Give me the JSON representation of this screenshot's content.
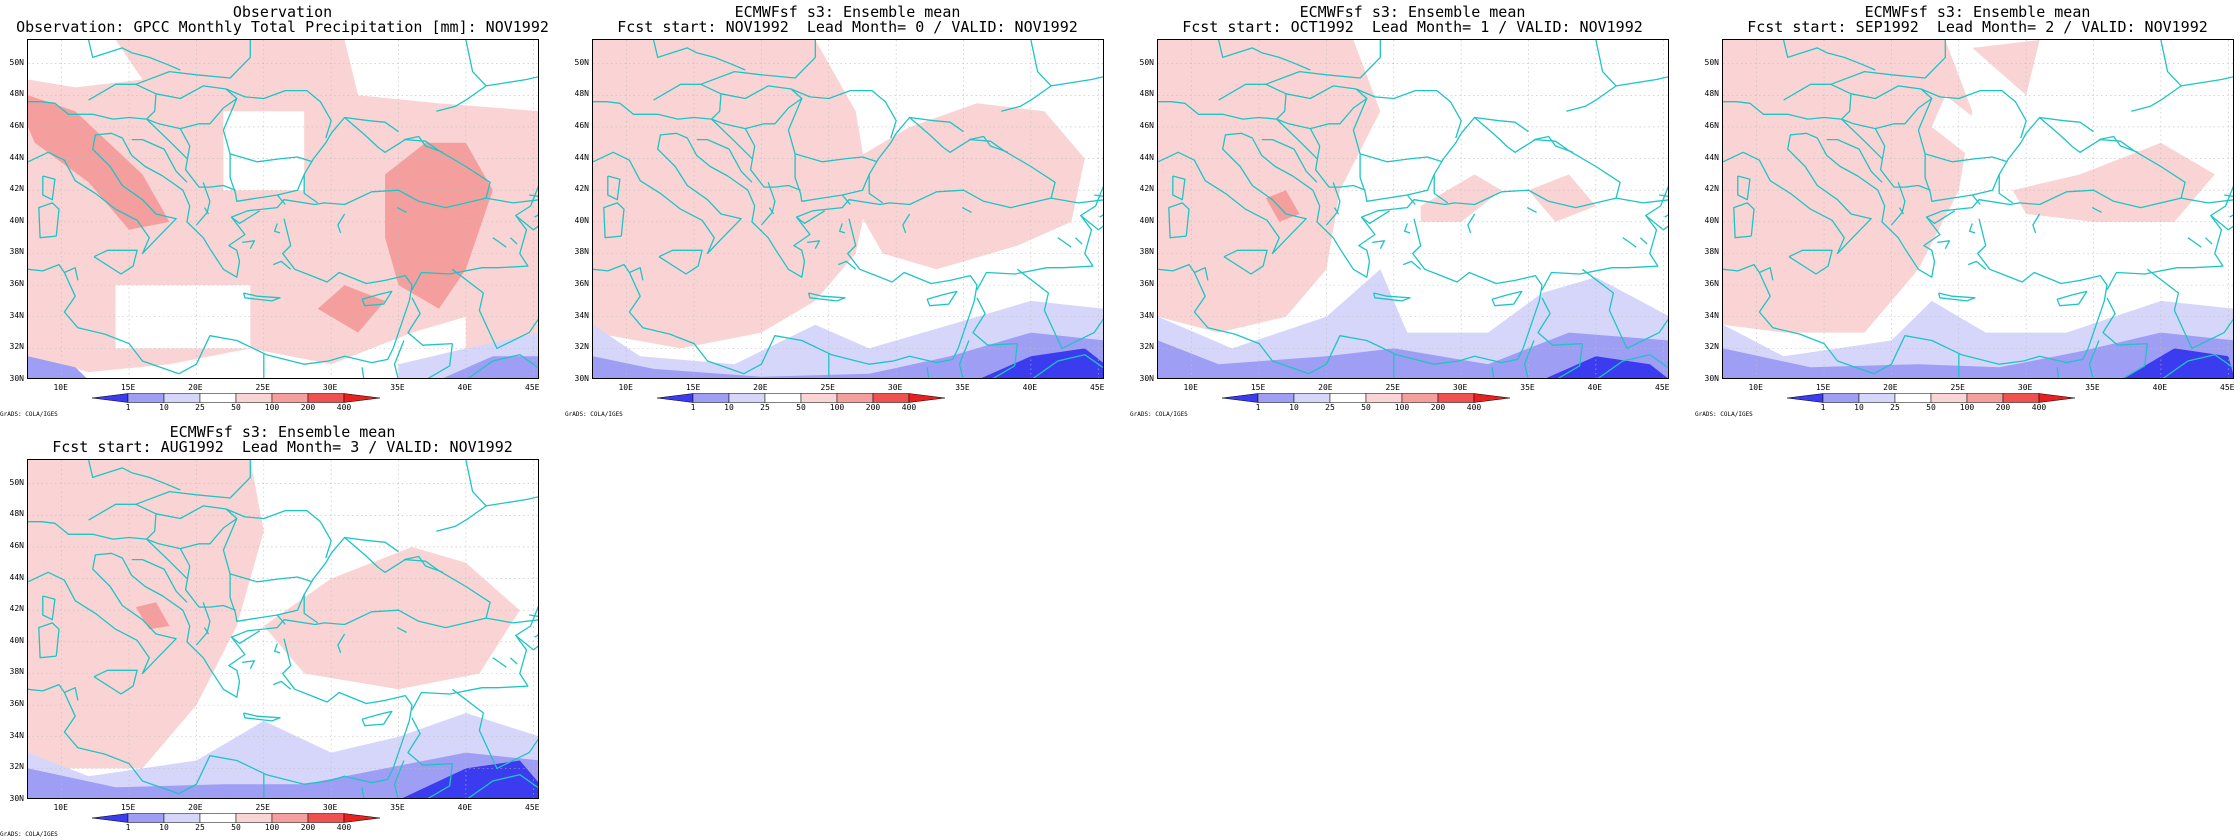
{
  "panels": [
    {
      "title_line1": "Observation",
      "title_line2": "Observation: GPCC Monthly Total Precipitation [mm]: NOV1992",
      "kind": "obs"
    },
    {
      "title_line1": "ECMWFsf s3: Ensemble mean",
      "title_line2": "Fcst start: NOV1992  Lead Month= 0 / VALID: NOV1992",
      "kind": "lead0"
    },
    {
      "title_line1": "ECMWFsf s3: Ensemble mean",
      "title_line2": "Fcst start: OCT1992  Lead Month= 1 / VALID: NOV1992",
      "kind": "lead1"
    },
    {
      "title_line1": "ECMWFsf s3: Ensemble mean",
      "title_line2": "Fcst start: SEP1992  Lead Month= 2 / VALID: NOV1992",
      "kind": "lead2"
    },
    {
      "title_line1": "ECMWFsf s3: Ensemble mean",
      "title_line2": "Fcst start: AUG1992  Lead Month= 3 / VALID: NOV1992",
      "kind": "lead3"
    }
  ],
  "map": {
    "lon_range": [
      7.5,
      45.5
    ],
    "lat_range": [
      30,
      51.5
    ],
    "lat_ticks": [
      "30N",
      "32N",
      "34N",
      "36N",
      "38N",
      "40N",
      "42N",
      "44N",
      "46N",
      "48N",
      "50N"
    ],
    "lon_ticks": [
      "10E",
      "15E",
      "20E",
      "25E",
      "30E",
      "35E",
      "40E",
      "45E"
    ],
    "coast_color": "#1fc4c4",
    "grid": "dotted"
  },
  "legend": {
    "labels": [
      "1",
      "10",
      "25",
      "50",
      "100",
      "200",
      "400"
    ],
    "colors": [
      "#3b3bf0",
      "#9e9ef5",
      "#d6d6fa",
      "#ffffff",
      "#fad4d4",
      "#f59e9e",
      "#ef5050",
      "#e82020"
    ]
  },
  "credit": "GrADS: COLA/IGES"
}
